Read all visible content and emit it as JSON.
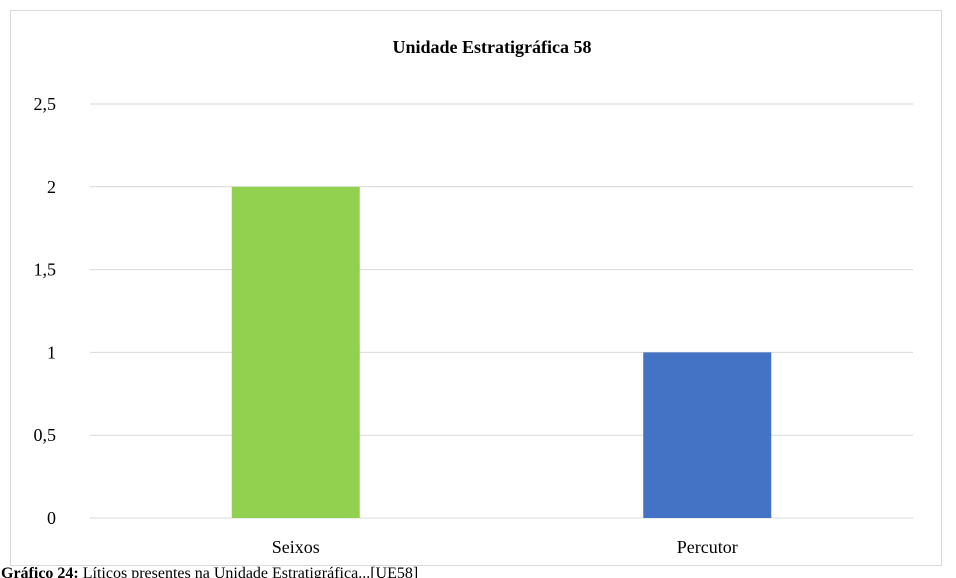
{
  "chart_data": {
    "type": "bar",
    "title": "Unidade Estratigráfica 58",
    "categories": [
      "Seixos",
      "Percutor"
    ],
    "values": [
      2,
      1
    ],
    "bar_colors": [
      "#92d050",
      "#4472c4"
    ],
    "ylim": [
      0,
      2.5
    ],
    "yticks": [
      {
        "value": 0,
        "label": "0"
      },
      {
        "value": 0.5,
        "label": "0,5"
      },
      {
        "value": 1,
        "label": "1"
      },
      {
        "value": 1.5,
        "label": "1,5"
      },
      {
        "value": 2,
        "label": "2"
      },
      {
        "value": 2.5,
        "label": "2,5"
      }
    ],
    "grid": true,
    "gridline_color": "#d9d9d9",
    "legend": "none"
  },
  "caption": {
    "lead": "Gráfico 24:",
    "text": " Líticos presentes na Unidade Estratigráfica...[UE58]"
  }
}
